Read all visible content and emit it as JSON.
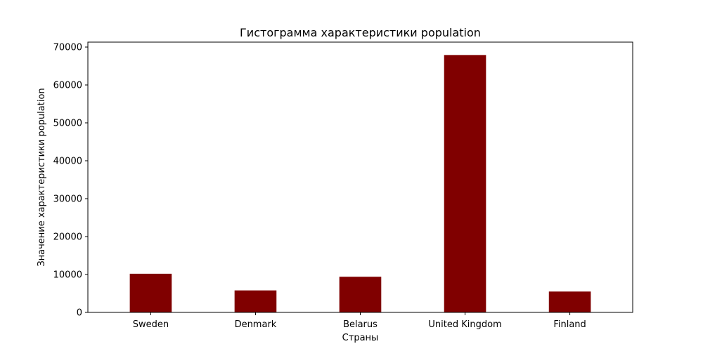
{
  "chart_data": {
    "type": "bar",
    "title": "Гистограмма характеристики population",
    "xlabel": "Страны",
    "ylabel": "Значение характеристики population",
    "categories": [
      "Sweden",
      "Denmark",
      "Belarus",
      "United Kingdom",
      "Finland"
    ],
    "values": [
      10200,
      5800,
      9400,
      67900,
      5500
    ],
    "ylim": [
      0,
      71300
    ],
    "yticks": [
      0,
      10000,
      20000,
      30000,
      40000,
      50000,
      60000,
      70000
    ],
    "ytick_labels": [
      "0",
      "10000",
      "20000",
      "30000",
      "40000",
      "50000",
      "60000",
      "70000"
    ],
    "bar_color": "#800000",
    "grid": false,
    "legend": false
  }
}
